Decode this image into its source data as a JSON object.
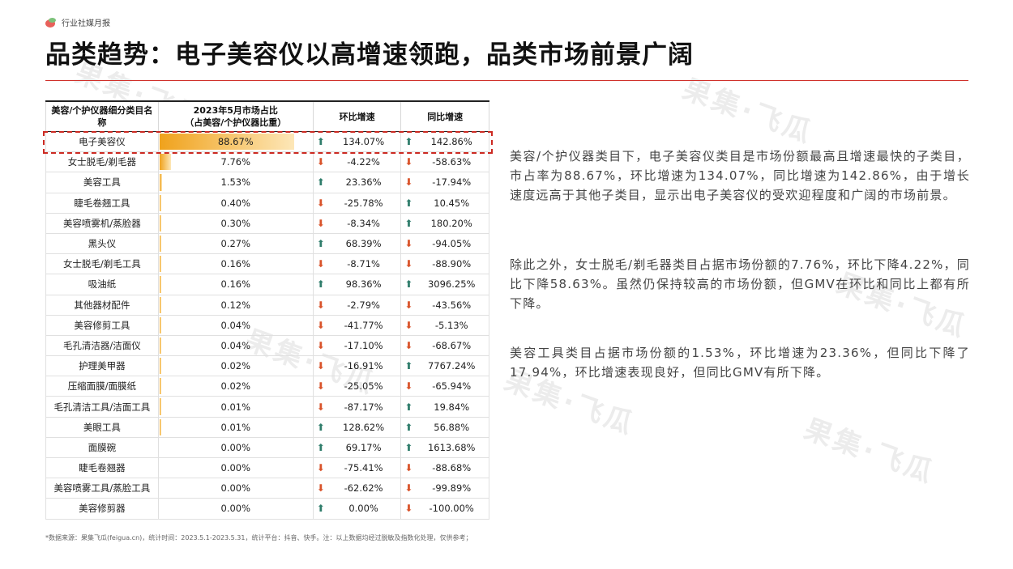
{
  "brand": {
    "name": "行业社媒月报"
  },
  "title": "品类趋势：电子美容仪以高增速领跑，品类市场前景广阔",
  "watermark_text": "果集·飞瓜",
  "table": {
    "headers": {
      "category": "美容/个护仪器细分类目名称",
      "share_line1": "2023年5月市场占比",
      "share_line2": "（占美容/个护仪器比重）",
      "mom": "环比增速",
      "yoy": "同比增速"
    },
    "rows": [
      {
        "name": "电子美容仪",
        "share": "88.67%",
        "share_value": 88.67,
        "mom": "134.07%",
        "mom_dir": "up",
        "yoy": "142.86%",
        "yoy_dir": "up"
      },
      {
        "name": "女士脱毛/剃毛器",
        "share": "7.76%",
        "share_value": 7.76,
        "mom": "-4.22%",
        "mom_dir": "down",
        "yoy": "-58.63%",
        "yoy_dir": "down"
      },
      {
        "name": "美容工具",
        "share": "1.53%",
        "share_value": 1.53,
        "mom": "23.36%",
        "mom_dir": "up",
        "yoy": "-17.94%",
        "yoy_dir": "down"
      },
      {
        "name": "睫毛卷翘工具",
        "share": "0.40%",
        "share_value": 0.4,
        "mom": "-25.78%",
        "mom_dir": "down",
        "yoy": "10.45%",
        "yoy_dir": "up"
      },
      {
        "name": "美容喷雾机/蒸脸器",
        "share": "0.30%",
        "share_value": 0.3,
        "mom": "-8.34%",
        "mom_dir": "down",
        "yoy": "180.20%",
        "yoy_dir": "up"
      },
      {
        "name": "黑头仪",
        "share": "0.27%",
        "share_value": 0.27,
        "mom": "68.39%",
        "mom_dir": "up",
        "yoy": "-94.05%",
        "yoy_dir": "down"
      },
      {
        "name": "女士脱毛/剃毛工具",
        "share": "0.16%",
        "share_value": 0.16,
        "mom": "-8.71%",
        "mom_dir": "down",
        "yoy": "-88.90%",
        "yoy_dir": "down"
      },
      {
        "name": "吸油纸",
        "share": "0.16%",
        "share_value": 0.16,
        "mom": "98.36%",
        "mom_dir": "up",
        "yoy": "3096.25%",
        "yoy_dir": "up"
      },
      {
        "name": "其他器材配件",
        "share": "0.12%",
        "share_value": 0.12,
        "mom": "-2.79%",
        "mom_dir": "down",
        "yoy": "-43.56%",
        "yoy_dir": "down"
      },
      {
        "name": "美容修剪工具",
        "share": "0.04%",
        "share_value": 0.04,
        "mom": "-41.77%",
        "mom_dir": "down",
        "yoy": "-5.13%",
        "yoy_dir": "down"
      },
      {
        "name": "毛孔清洁器/洁面仪",
        "share": "0.04%",
        "share_value": 0.04,
        "mom": "-17.10%",
        "mom_dir": "down",
        "yoy": "-68.67%",
        "yoy_dir": "down"
      },
      {
        "name": "护理美甲器",
        "share": "0.02%",
        "share_value": 0.02,
        "mom": "-16.91%",
        "mom_dir": "down",
        "yoy": "7767.24%",
        "yoy_dir": "up"
      },
      {
        "name": "压缩面膜/面膜纸",
        "share": "0.02%",
        "share_value": 0.02,
        "mom": "-25.05%",
        "mom_dir": "down",
        "yoy": "-65.94%",
        "yoy_dir": "down"
      },
      {
        "name": "毛孔清洁工具/洁面工具",
        "share": "0.01%",
        "share_value": 0.01,
        "mom": "-87.17%",
        "mom_dir": "down",
        "yoy": "19.84%",
        "yoy_dir": "up"
      },
      {
        "name": "美眼工具",
        "share": "0.01%",
        "share_value": 0.01,
        "mom": "128.62%",
        "mom_dir": "up",
        "yoy": "56.88%",
        "yoy_dir": "up"
      },
      {
        "name": "面膜碗",
        "share": "0.00%",
        "share_value": 0.0,
        "mom": "69.17%",
        "mom_dir": "up",
        "yoy": "1613.68%",
        "yoy_dir": "up"
      },
      {
        "name": "睫毛卷翘器",
        "share": "0.00%",
        "share_value": 0.0,
        "mom": "-75.41%",
        "mom_dir": "down",
        "yoy": "-88.68%",
        "yoy_dir": "down"
      },
      {
        "name": "美容喷雾工具/蒸脸工具",
        "share": "0.00%",
        "share_value": 0.0,
        "mom": "-62.62%",
        "mom_dir": "down",
        "yoy": "-99.89%",
        "yoy_dir": "down"
      },
      {
        "name": "美容修剪器",
        "share": "0.00%",
        "share_value": 0.0,
        "mom": "0.00%",
        "mom_dir": "up",
        "yoy": "-100.00%",
        "yoy_dir": "down"
      }
    ]
  },
  "paragraphs": [
    "美容/个护仪器类目下，电子美容仪类目是市场份额最高且增速最快的子类目，市占率为88.67%，环比增速为134.07%，同比增速为142.86%，由于增长速度远高于其他子类目，显示出电子美容仪的受欢迎程度和广阔的市场前景。",
    "除此之外，女士脱毛/剃毛器类目占据市场份额的7.76%，环比下降4.22%，同比下降58.63%。虽然仍保持较高的市场份额，但GMV在环比和同比上都有所下降。",
    "美容工具类目占据市场份额的1.53%，环比增速为23.36%，但同比下降了17.94%，环比增速表现良好，但同比GMV有所下降。"
  ],
  "footnote": "*数据来源：果集飞瓜(feigua.cn)，统计时间：2023.5.1-2023.5.31，统计平台：抖音、快手。注：以上数据均经过脱敏及指数化处理，仅供参考；",
  "colors": {
    "accent_red": "#cc2a22",
    "bar_orange": "#f0a21c",
    "up_green": "#2f7d6b",
    "down_orange": "#d9532a"
  }
}
